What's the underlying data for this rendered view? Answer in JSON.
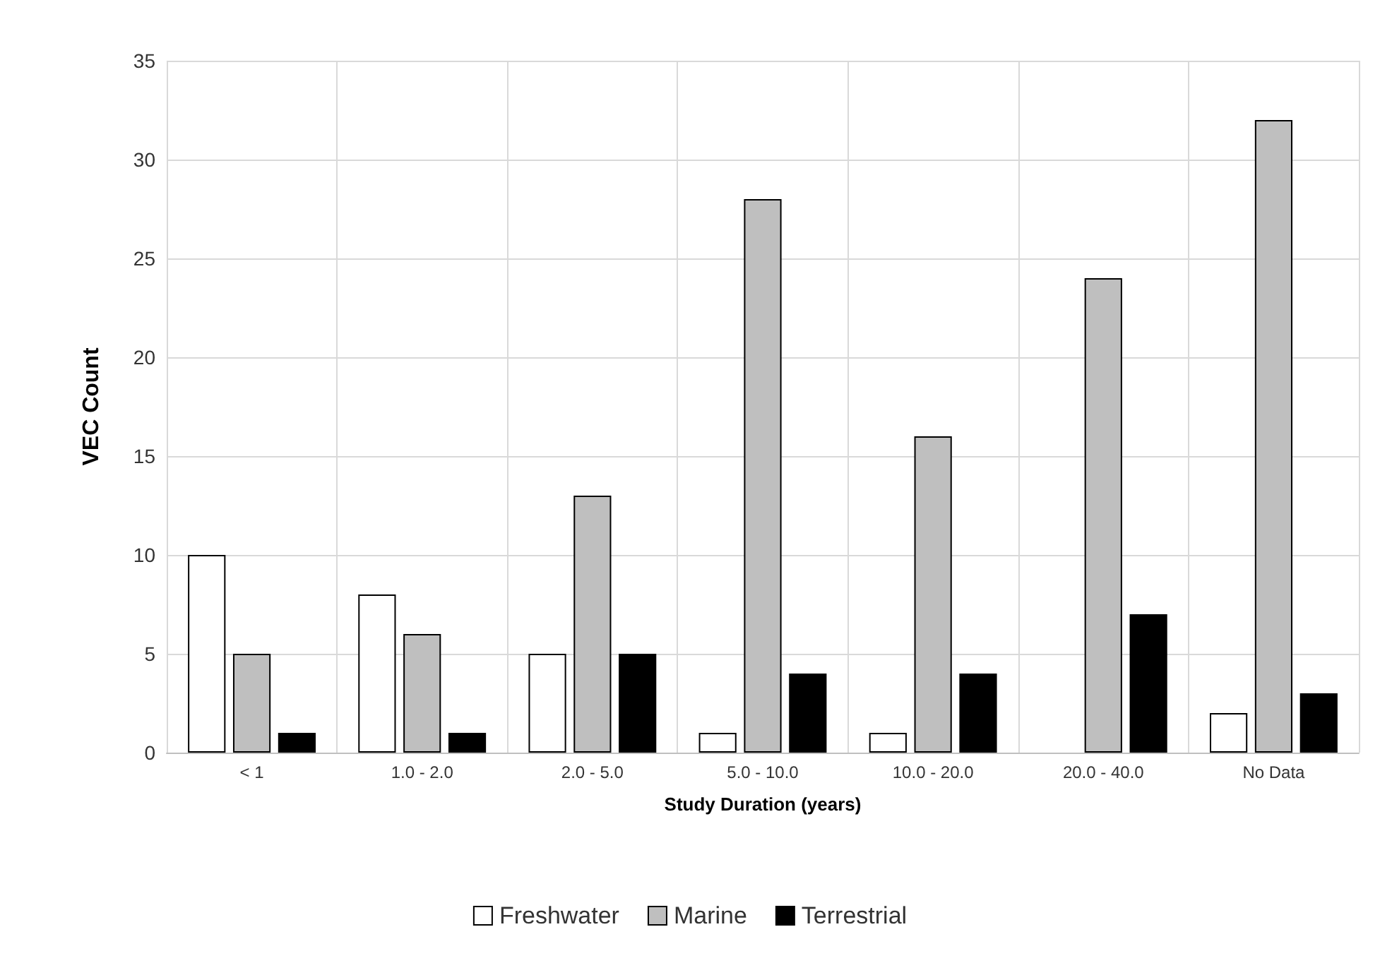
{
  "chart_data": {
    "type": "bar",
    "xlabel": "Study Duration (years)",
    "ylabel": "VEC Count",
    "categories": [
      "< 1",
      "1.0 - 2.0",
      "2.0 - 5.0",
      "5.0 - 10.0",
      "10.0 - 20.0",
      "20.0 - 40.0",
      "No Data"
    ],
    "series": [
      {
        "name": "Freshwater",
        "color": "#ffffff",
        "values": [
          10,
          8,
          5,
          1,
          1,
          0,
          2
        ]
      },
      {
        "name": "Marine",
        "color": "#bfbfbf",
        "values": [
          5,
          6,
          13,
          28,
          16,
          24,
          32
        ]
      },
      {
        "name": "Terrestrial",
        "color": "#000000",
        "values": [
          1,
          1,
          5,
          4,
          4,
          7,
          3
        ]
      }
    ],
    "ylim": [
      0,
      35
    ],
    "yticks": [
      0,
      5,
      10,
      15,
      20,
      25,
      30,
      35
    ],
    "grid": true,
    "legend": "bottom"
  }
}
